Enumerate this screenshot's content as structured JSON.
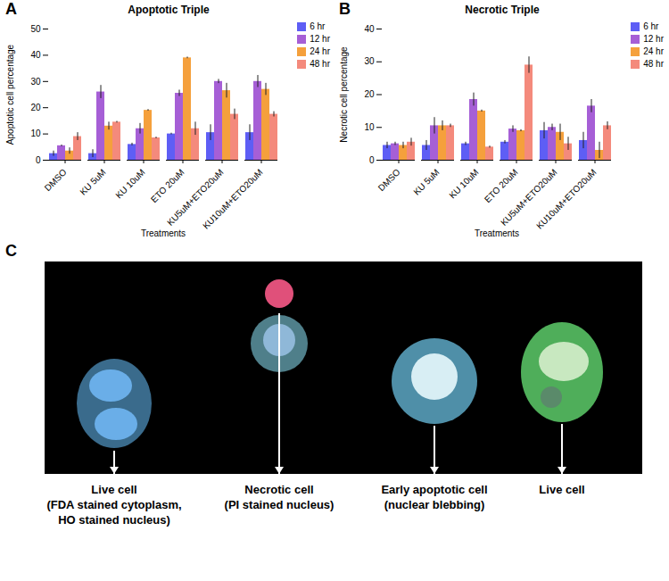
{
  "chart_data": [
    {
      "type": "bar",
      "panel_label": "A",
      "title": "Apoptotic Triple",
      "x_label": "Treatments",
      "y_label": "Apoptotic cell percentage",
      "categories": [
        "DMSO",
        "KU 5uM",
        "KU 10uM",
        "ETO 20uM",
        "KU5uM+ETO20uM",
        "KU10uM+ETO20uM"
      ],
      "series": [
        {
          "name": "6 hr",
          "color": "#5e5ef5",
          "values": [
            2.5,
            2.5,
            6,
            10,
            10.5,
            10.5
          ],
          "errors": [
            1,
            1.5,
            0.5,
            0.3,
            3,
            3
          ]
        },
        {
          "name": "12 hr",
          "color": "#a65fd6",
          "values": [
            5.5,
            26,
            12,
            25.5,
            30,
            30
          ],
          "errors": [
            0.3,
            2.5,
            2,
            1.2,
            0.8,
            2.3
          ]
        },
        {
          "name": "24 hr",
          "color": "#f5a03c",
          "values": [
            3.5,
            13,
            19,
            39,
            26.5,
            27
          ],
          "errors": [
            1.2,
            1.5,
            0.3,
            0.3,
            2.8,
            2.3
          ]
        },
        {
          "name": "48 hr",
          "color": "#f48a7c",
          "values": [
            9,
            14.5,
            8.5,
            12,
            17.5,
            17.5
          ],
          "errors": [
            1.5,
            0.3,
            0.3,
            2.5,
            2,
            1
          ]
        }
      ],
      "ylim": [
        0,
        50
      ],
      "yticks": [
        0,
        10,
        20,
        30,
        40,
        50
      ],
      "grid": false,
      "legend": "top-right"
    },
    {
      "type": "bar",
      "panel_label": "B",
      "title": "Necrotic Triple",
      "x_label": "Treatments",
      "y_label": "Necrotic cell percentage",
      "categories": [
        "DMSO",
        "KU 5uM",
        "KU 10uM",
        "ETO 20uM",
        "KU5uM+ETO20uM",
        "KU10uM+ETO20uM"
      ],
      "series": [
        {
          "name": "6 hr",
          "color": "#5e5ef5",
          "values": [
            4.5,
            4.5,
            5,
            5.5,
            9,
            6
          ],
          "errors": [
            1,
            1.5,
            0.5,
            0.5,
            2.5,
            2.5
          ]
        },
        {
          "name": "12 hr",
          "color": "#a65fd6",
          "values": [
            5,
            10.5,
            18.5,
            9.5,
            10,
            16.5
          ],
          "errors": [
            0.5,
            2.5,
            2,
            1,
            1,
            2
          ]
        },
        {
          "name": "24 hr",
          "color": "#f5a03c",
          "values": [
            4.5,
            10.5,
            15,
            9,
            8.5,
            3
          ],
          "errors": [
            1,
            1.5,
            0.3,
            0.3,
            2.5,
            2.5
          ]
        },
        {
          "name": "48 hr",
          "color": "#f48a7c",
          "values": [
            5.5,
            10.5,
            4,
            29,
            5,
            10.5
          ],
          "errors": [
            1.2,
            0.5,
            0.3,
            2.5,
            2,
            1.2
          ]
        }
      ],
      "ylim": [
        0,
        40
      ],
      "yticks": [
        0,
        10,
        20,
        30,
        40
      ],
      "grid": false,
      "legend": "top-right"
    }
  ],
  "image_panel": {
    "panel_label": "C",
    "labels": [
      [
        "Live cell",
        "(FDA stained cytoplasm,",
        "HO stained nucleus)"
      ],
      [
        "Necrotic cell",
        "(PI stained nucleus)"
      ],
      [
        "Early apoptotic cell",
        "(nuclear blebbing)"
      ],
      [
        "Live cell"
      ]
    ]
  }
}
